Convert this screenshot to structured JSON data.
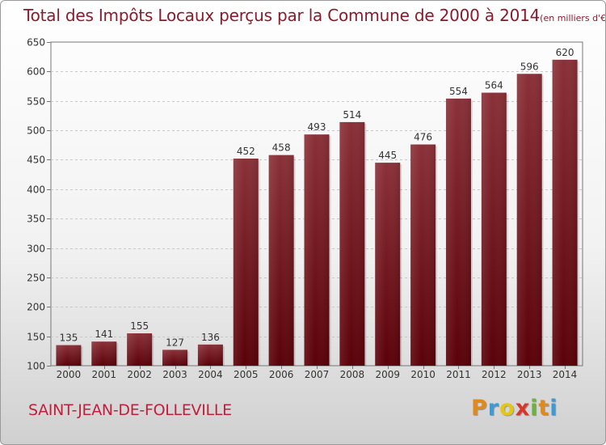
{
  "header": {
    "title": "Total des Impôts Locaux perçus par la Commune de 2000 à 2014",
    "unit": "(en milliers d'€)"
  },
  "footer": {
    "commune": "SAINT-JEAN-DE-FOLLEVILLE",
    "logo_letters": [
      "P",
      "r",
      "o",
      "x",
      "i",
      "t",
      "i"
    ],
    "logo_colors": [
      "#e08a1e",
      "#3b9bd6",
      "#e4c619",
      "#d8362a",
      "#6ab43a",
      "#e08a1e",
      "#3b9bd6"
    ]
  },
  "chart_data": {
    "type": "bar",
    "title": "Total des Impôts Locaux perçus par la Commune de 2000 à 2014",
    "unit": "(en milliers d'€)",
    "categories": [
      "2000",
      "2001",
      "2002",
      "2003",
      "2004",
      "2005",
      "2006",
      "2007",
      "2008",
      "2009",
      "2010",
      "2011",
      "2012",
      "2013",
      "2014"
    ],
    "values": [
      135,
      141,
      155,
      127,
      136,
      452,
      458,
      493,
      514,
      445,
      476,
      554,
      564,
      596,
      620
    ],
    "ylim": [
      100,
      650
    ],
    "yticks": [
      100,
      150,
      200,
      250,
      300,
      350,
      400,
      450,
      500,
      550,
      600,
      650
    ],
    "grid": true,
    "bar_color": "#6e0e16"
  }
}
